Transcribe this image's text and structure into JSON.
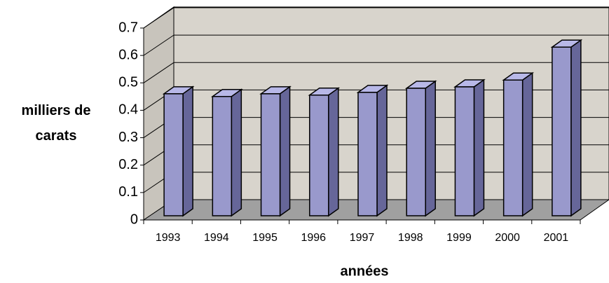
{
  "chart_data": {
    "type": "bar3d",
    "categories": [
      "1993",
      "1994",
      "1995",
      "1996",
      "1997",
      "1998",
      "1999",
      "2000",
      "2001"
    ],
    "values": [
      0.445,
      0.435,
      0.445,
      0.44,
      0.45,
      0.465,
      0.47,
      0.495,
      0.615
    ],
    "color": "#9999cc",
    "ylim": [
      0,
      0.7
    ],
    "yticks": [
      0,
      0.1,
      0.2,
      0.3,
      0.4,
      0.5,
      0.6,
      0.7
    ],
    "grid": true,
    "y_label": "milliers de carats",
    "x_label": "années"
  }
}
